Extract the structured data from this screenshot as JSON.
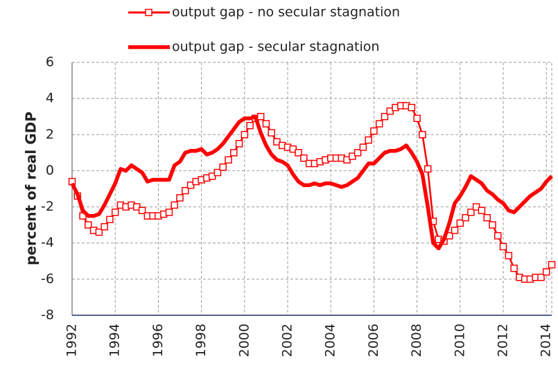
{
  "chart_data": {
    "type": "line",
    "y_label": "percent of real GDP",
    "x": [
      1992,
      1992.25,
      1992.5,
      1992.75,
      1993,
      1993.25,
      1993.5,
      1993.75,
      1994,
      1994.25,
      1994.5,
      1994.75,
      1995,
      1995.25,
      1995.5,
      1995.75,
      1996,
      1996.25,
      1996.5,
      1996.75,
      1997,
      1997.25,
      1997.5,
      1997.75,
      1998,
      1998.25,
      1998.5,
      1998.75,
      1999,
      1999.25,
      1999.5,
      1999.75,
      2000,
      2000.25,
      2000.5,
      2000.75,
      2001,
      2001.25,
      2001.5,
      2001.75,
      2002,
      2002.25,
      2002.5,
      2002.75,
      2003,
      2003.25,
      2003.5,
      2003.75,
      2004,
      2004.25,
      2004.5,
      2004.75,
      2005,
      2005.25,
      2005.5,
      2005.75,
      2006,
      2006.25,
      2006.5,
      2006.75,
      2007,
      2007.25,
      2007.5,
      2007.75,
      2008,
      2008.25,
      2008.5,
      2008.75,
      2009,
      2009.25,
      2009.5,
      2009.75,
      2010,
      2010.25,
      2010.5,
      2010.75,
      2011,
      2011.25,
      2011.5,
      2011.75,
      2012,
      2012.25,
      2012.5,
      2012.75,
      2013,
      2013.25,
      2013.5,
      2013.75,
      2014,
      2014.25
    ],
    "series": [
      {
        "name": "output gap - no secular stagnation",
        "color": "#ff0000",
        "marker": "square",
        "values": [
          -0.6,
          -1.4,
          -2.5,
          -3.0,
          -3.3,
          -3.4,
          -3.1,
          -2.7,
          -2.3,
          -1.9,
          -2.0,
          -1.9,
          -2.0,
          -2.2,
          -2.5,
          -2.5,
          -2.5,
          -2.4,
          -2.3,
          -1.9,
          -1.5,
          -1.1,
          -0.8,
          -0.6,
          -0.5,
          -0.4,
          -0.3,
          -0.1,
          0.2,
          0.6,
          1.0,
          1.5,
          2.0,
          2.5,
          2.9,
          3.0,
          2.6,
          2.1,
          1.6,
          1.4,
          1.3,
          1.2,
          1.0,
          0.7,
          0.4,
          0.4,
          0.5,
          0.6,
          0.7,
          0.7,
          0.7,
          0.6,
          0.8,
          1.0,
          1.3,
          1.7,
          2.2,
          2.6,
          3.0,
          3.3,
          3.5,
          3.6,
          3.6,
          3.5,
          2.9,
          2.0,
          0.1,
          -2.8,
          -3.8,
          -3.9,
          -3.6,
          -3.3,
          -2.9,
          -2.6,
          -2.3,
          -2.0,
          -2.2,
          -2.6,
          -3.0,
          -3.6,
          -4.2,
          -4.7,
          -5.4,
          -5.9,
          -6.0,
          -6.0,
          -5.9,
          -5.9,
          -5.6,
          -5.2
        ]
      },
      {
        "name": "output gap - secular stagnation",
        "color": "#ff0000",
        "values": [
          -0.7,
          -1.3,
          -2.2,
          -2.5,
          -2.5,
          -2.4,
          -1.9,
          -1.3,
          -0.7,
          0.1,
          0.0,
          0.3,
          0.1,
          -0.1,
          -0.6,
          -0.5,
          -0.5,
          -0.5,
          -0.5,
          0.3,
          0.5,
          1.0,
          1.1,
          1.1,
          1.2,
          0.9,
          1.0,
          1.2,
          1.5,
          1.9,
          2.3,
          2.7,
          2.9,
          2.9,
          3.0,
          2.1,
          1.4,
          0.9,
          0.6,
          0.5,
          0.3,
          -0.2,
          -0.6,
          -0.8,
          -0.8,
          -0.7,
          -0.8,
          -0.7,
          -0.7,
          -0.8,
          -0.9,
          -0.8,
          -0.6,
          -0.4,
          0.0,
          0.4,
          0.4,
          0.7,
          1.0,
          1.1,
          1.1,
          1.2,
          1.4,
          1.0,
          0.5,
          -0.2,
          -2.0,
          -4.0,
          -4.3,
          -3.8,
          -2.9,
          -1.8,
          -1.4,
          -0.9,
          -0.3,
          -0.5,
          -0.7,
          -1.1,
          -1.3,
          -1.6,
          -1.8,
          -2.2,
          -2.3,
          -2.0,
          -1.7,
          -1.4,
          -1.2,
          -1.0,
          -0.6,
          -0.3
        ]
      }
    ],
    "xlim": [
      1992,
      2014.25
    ],
    "xticks": [
      1992,
      1994,
      1996,
      1998,
      2000,
      2002,
      2004,
      2006,
      2008,
      2010,
      2012,
      2014
    ],
    "ylim": [
      -8,
      6
    ],
    "yticks": [
      -8,
      -6,
      -4,
      -2,
      0,
      2,
      4,
      6
    ],
    "grid": true,
    "legend": "top"
  }
}
